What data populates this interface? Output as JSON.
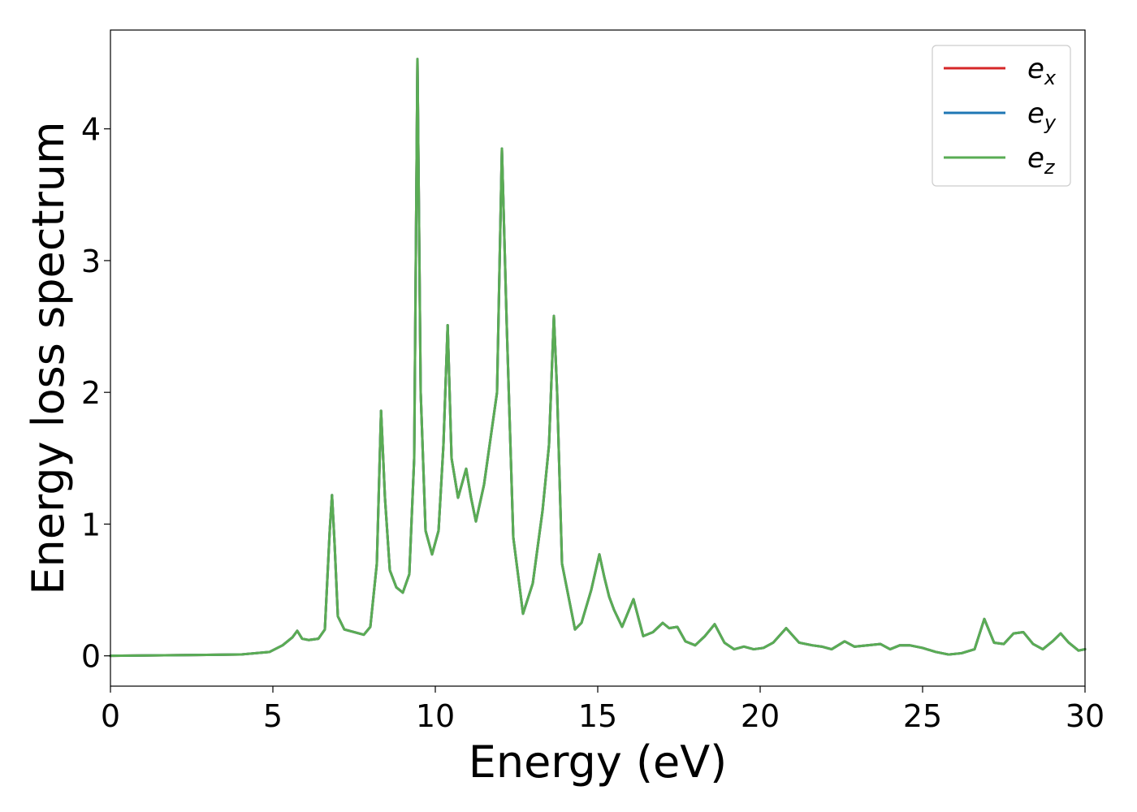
{
  "chart_data": {
    "type": "line",
    "xlabel": "Energy (eV)",
    "ylabel": "Energy loss spectrum",
    "xlim": [
      0,
      30
    ],
    "ylim": [
      -0.23,
      4.75
    ],
    "xticks": [
      0,
      5,
      10,
      15,
      20,
      25,
      30
    ],
    "xtick_labels": [
      "0",
      "5",
      "10",
      "15",
      "20",
      "25",
      "30"
    ],
    "yticks": [
      0,
      1,
      2,
      3,
      4
    ],
    "ytick_labels": [
      "0",
      "1",
      "2",
      "3",
      "4"
    ],
    "grid": false,
    "legend_position": "top-right",
    "series": [
      {
        "name_base": "e",
        "name_sub": "x",
        "color": "#d62728",
        "x": [
          0,
          2,
          4,
          4.9,
          5.3,
          5.6,
          5.75,
          5.9,
          6.1,
          6.4,
          6.6,
          6.75,
          6.82,
          6.9,
          7.0,
          7.2,
          7.5,
          7.8,
          8.0,
          8.2,
          8.33,
          8.45,
          8.6,
          8.8,
          9.0,
          9.2,
          9.35,
          9.45,
          9.55,
          9.7,
          9.9,
          10.1,
          10.25,
          10.38,
          10.5,
          10.7,
          10.95,
          11.1,
          11.25,
          11.5,
          11.7,
          11.9,
          12.05,
          12.2,
          12.4,
          12.7,
          13.0,
          13.3,
          13.5,
          13.65,
          13.75,
          13.9,
          14.1,
          14.3,
          14.5,
          14.8,
          15.05,
          15.2,
          15.35,
          15.5,
          15.75,
          16.1,
          16.4,
          16.7,
          17.0,
          17.2,
          17.45,
          17.7,
          18.0,
          18.3,
          18.6,
          18.9,
          19.2,
          19.5,
          19.8,
          20.1,
          20.4,
          20.8,
          21.2,
          21.6,
          21.9,
          22.2,
          22.6,
          22.9,
          23.3,
          23.7,
          24.0,
          24.3,
          24.6,
          25.0,
          25.4,
          25.8,
          26.2,
          26.6,
          26.9,
          27.2,
          27.5,
          27.8,
          28.1,
          28.4,
          28.7,
          29.0,
          29.25,
          29.5,
          29.8,
          30.0
        ],
        "y": [
          0.0,
          0.005,
          0.01,
          0.03,
          0.08,
          0.14,
          0.19,
          0.13,
          0.12,
          0.13,
          0.2,
          0.95,
          1.22,
          0.85,
          0.3,
          0.2,
          0.18,
          0.16,
          0.22,
          0.7,
          1.86,
          1.2,
          0.65,
          0.52,
          0.48,
          0.62,
          1.5,
          4.53,
          2.0,
          0.95,
          0.77,
          0.95,
          1.6,
          2.51,
          1.5,
          1.2,
          1.42,
          1.2,
          1.02,
          1.3,
          1.65,
          2.0,
          3.85,
          2.5,
          0.9,
          0.32,
          0.55,
          1.1,
          1.6,
          2.58,
          2.0,
          0.7,
          0.45,
          0.2,
          0.25,
          0.5,
          0.77,
          0.6,
          0.45,
          0.35,
          0.22,
          0.43,
          0.15,
          0.18,
          0.25,
          0.21,
          0.22,
          0.11,
          0.08,
          0.15,
          0.24,
          0.1,
          0.05,
          0.07,
          0.05,
          0.06,
          0.1,
          0.21,
          0.1,
          0.08,
          0.07,
          0.05,
          0.11,
          0.07,
          0.08,
          0.09,
          0.05,
          0.08,
          0.08,
          0.06,
          0.03,
          0.01,
          0.02,
          0.05,
          0.28,
          0.1,
          0.09,
          0.17,
          0.18,
          0.09,
          0.05,
          0.11,
          0.17,
          0.1,
          0.04,
          0.05
        ]
      },
      {
        "name_base": "e",
        "name_sub": "y",
        "color": "#1f77b4",
        "x": [
          0,
          2,
          4,
          4.9,
          5.3,
          5.6,
          5.75,
          5.9,
          6.1,
          6.4,
          6.6,
          6.75,
          6.82,
          6.9,
          7.0,
          7.2,
          7.5,
          7.8,
          8.0,
          8.2,
          8.33,
          8.45,
          8.6,
          8.8,
          9.0,
          9.2,
          9.35,
          9.45,
          9.55,
          9.7,
          9.9,
          10.1,
          10.25,
          10.38,
          10.5,
          10.7,
          10.95,
          11.1,
          11.25,
          11.5,
          11.7,
          11.9,
          12.05,
          12.2,
          12.4,
          12.7,
          13.0,
          13.3,
          13.5,
          13.65,
          13.75,
          13.9,
          14.1,
          14.3,
          14.5,
          14.8,
          15.05,
          15.2,
          15.35,
          15.5,
          15.75,
          16.1,
          16.4,
          16.7,
          17.0,
          17.2,
          17.45,
          17.7,
          18.0,
          18.3,
          18.6,
          18.9,
          19.2,
          19.5,
          19.8,
          20.1,
          20.4,
          20.8,
          21.2,
          21.6,
          21.9,
          22.2,
          22.6,
          22.9,
          23.3,
          23.7,
          24.0,
          24.3,
          24.6,
          25.0,
          25.4,
          25.8,
          26.2,
          26.6,
          26.9,
          27.2,
          27.5,
          27.8,
          28.1,
          28.4,
          28.7,
          29.0,
          29.25,
          29.5,
          29.8,
          30.0
        ],
        "y": [
          0.0,
          0.005,
          0.01,
          0.03,
          0.08,
          0.14,
          0.19,
          0.13,
          0.12,
          0.13,
          0.2,
          0.95,
          1.22,
          0.85,
          0.3,
          0.2,
          0.18,
          0.16,
          0.22,
          0.7,
          1.86,
          1.2,
          0.65,
          0.52,
          0.48,
          0.62,
          1.5,
          4.53,
          2.0,
          0.95,
          0.77,
          0.95,
          1.6,
          2.51,
          1.5,
          1.2,
          1.42,
          1.2,
          1.02,
          1.3,
          1.65,
          2.0,
          3.85,
          2.5,
          0.9,
          0.32,
          0.55,
          1.1,
          1.6,
          2.58,
          2.0,
          0.7,
          0.45,
          0.2,
          0.25,
          0.5,
          0.77,
          0.6,
          0.45,
          0.35,
          0.22,
          0.43,
          0.15,
          0.18,
          0.25,
          0.21,
          0.22,
          0.11,
          0.08,
          0.15,
          0.24,
          0.1,
          0.05,
          0.07,
          0.05,
          0.06,
          0.1,
          0.21,
          0.1,
          0.08,
          0.07,
          0.05,
          0.11,
          0.07,
          0.08,
          0.09,
          0.05,
          0.08,
          0.08,
          0.06,
          0.03,
          0.01,
          0.02,
          0.05,
          0.28,
          0.1,
          0.09,
          0.17,
          0.18,
          0.09,
          0.05,
          0.11,
          0.17,
          0.1,
          0.04,
          0.05
        ]
      },
      {
        "name_base": "e",
        "name_sub": "z",
        "color": "#5aac54",
        "x": [
          0,
          2,
          4,
          4.9,
          5.3,
          5.6,
          5.75,
          5.9,
          6.1,
          6.4,
          6.6,
          6.75,
          6.82,
          6.9,
          7.0,
          7.2,
          7.5,
          7.8,
          8.0,
          8.2,
          8.33,
          8.45,
          8.6,
          8.8,
          9.0,
          9.2,
          9.35,
          9.45,
          9.55,
          9.7,
          9.9,
          10.1,
          10.25,
          10.38,
          10.5,
          10.7,
          10.95,
          11.1,
          11.25,
          11.5,
          11.7,
          11.9,
          12.05,
          12.2,
          12.4,
          12.7,
          13.0,
          13.3,
          13.5,
          13.65,
          13.75,
          13.9,
          14.1,
          14.3,
          14.5,
          14.8,
          15.05,
          15.2,
          15.35,
          15.5,
          15.75,
          16.1,
          16.4,
          16.7,
          17.0,
          17.2,
          17.45,
          17.7,
          18.0,
          18.3,
          18.6,
          18.9,
          19.2,
          19.5,
          19.8,
          20.1,
          20.4,
          20.8,
          21.2,
          21.6,
          21.9,
          22.2,
          22.6,
          22.9,
          23.3,
          23.7,
          24.0,
          24.3,
          24.6,
          25.0,
          25.4,
          25.8,
          26.2,
          26.6,
          26.9,
          27.2,
          27.5,
          27.8,
          28.1,
          28.4,
          28.7,
          29.0,
          29.25,
          29.5,
          29.8,
          30.0
        ],
        "y": [
          0.0,
          0.005,
          0.01,
          0.03,
          0.08,
          0.14,
          0.19,
          0.13,
          0.12,
          0.13,
          0.2,
          0.95,
          1.22,
          0.85,
          0.3,
          0.2,
          0.18,
          0.16,
          0.22,
          0.7,
          1.86,
          1.2,
          0.65,
          0.52,
          0.48,
          0.62,
          1.5,
          4.53,
          2.0,
          0.95,
          0.77,
          0.95,
          1.6,
          2.51,
          1.5,
          1.2,
          1.42,
          1.2,
          1.02,
          1.3,
          1.65,
          2.0,
          3.85,
          2.5,
          0.9,
          0.32,
          0.55,
          1.1,
          1.6,
          2.58,
          2.0,
          0.7,
          0.45,
          0.2,
          0.25,
          0.5,
          0.77,
          0.6,
          0.45,
          0.35,
          0.22,
          0.43,
          0.15,
          0.18,
          0.25,
          0.21,
          0.22,
          0.11,
          0.08,
          0.15,
          0.24,
          0.1,
          0.05,
          0.07,
          0.05,
          0.06,
          0.1,
          0.21,
          0.1,
          0.08,
          0.07,
          0.05,
          0.11,
          0.07,
          0.08,
          0.09,
          0.05,
          0.08,
          0.08,
          0.06,
          0.03,
          0.01,
          0.02,
          0.05,
          0.28,
          0.1,
          0.09,
          0.17,
          0.18,
          0.09,
          0.05,
          0.11,
          0.17,
          0.1,
          0.04,
          0.05
        ]
      }
    ]
  }
}
